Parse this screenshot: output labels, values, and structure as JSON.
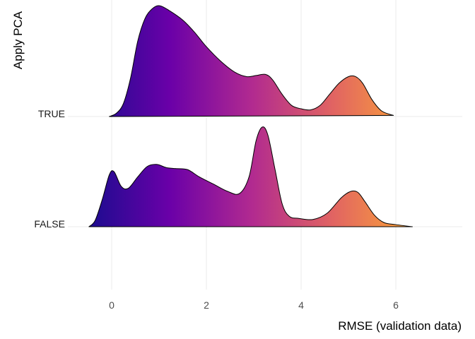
{
  "chart_data": {
    "type": "ridgeline",
    "xlabel": "RMSE (validation data)",
    "ylabel": "Apply PCA",
    "xlim": [
      -0.7,
      7.3
    ],
    "x_ticks": [
      0,
      2,
      4,
      6
    ],
    "x_tick_labels": [
      "0",
      "2",
      "4",
      "6"
    ],
    "grid": true,
    "fill": {
      "type": "horizontal-gradient",
      "palette": "plasma",
      "colors": [
        "#1b0c8f",
        "#6a00a8",
        "#b12a90",
        "#e16462",
        "#fca636"
      ],
      "domain": [
        -0.5,
        6.4
      ]
    },
    "series": [
      {
        "name": "TRUE",
        "x": [
          -0.05,
          0.1,
          0.25,
          0.4,
          0.55,
          0.7,
          0.85,
          1.0,
          1.2,
          1.5,
          1.75,
          2.0,
          2.3,
          2.6,
          2.85,
          3.05,
          3.25,
          3.4,
          3.6,
          3.8,
          4.0,
          4.2,
          4.4,
          4.6,
          4.8,
          5.0,
          5.15,
          5.3,
          5.5,
          5.7,
          5.95
        ],
        "density": [
          0.0,
          0.03,
          0.12,
          0.35,
          0.68,
          0.88,
          0.97,
          1.0,
          0.96,
          0.87,
          0.76,
          0.63,
          0.5,
          0.4,
          0.36,
          0.37,
          0.38,
          0.33,
          0.2,
          0.1,
          0.07,
          0.06,
          0.1,
          0.2,
          0.3,
          0.36,
          0.36,
          0.3,
          0.15,
          0.05,
          0.01
        ]
      },
      {
        "name": "FALSE",
        "x": [
          -0.48,
          -0.35,
          -0.2,
          -0.05,
          0.05,
          0.2,
          0.35,
          0.55,
          0.75,
          0.95,
          1.15,
          1.35,
          1.6,
          1.85,
          2.15,
          2.45,
          2.7,
          2.9,
          3.05,
          3.18,
          3.3,
          3.45,
          3.6,
          3.75,
          3.95,
          4.25,
          4.55,
          4.85,
          5.05,
          5.2,
          5.35,
          5.55,
          5.75,
          6.0,
          6.35
        ],
        "density": [
          0.0,
          0.06,
          0.26,
          0.5,
          0.53,
          0.39,
          0.37,
          0.48,
          0.58,
          0.6,
          0.57,
          0.56,
          0.55,
          0.48,
          0.41,
          0.34,
          0.32,
          0.48,
          0.83,
          0.96,
          0.88,
          0.55,
          0.22,
          0.1,
          0.08,
          0.07,
          0.13,
          0.28,
          0.34,
          0.33,
          0.24,
          0.11,
          0.04,
          0.02,
          0.0
        ]
      }
    ]
  }
}
